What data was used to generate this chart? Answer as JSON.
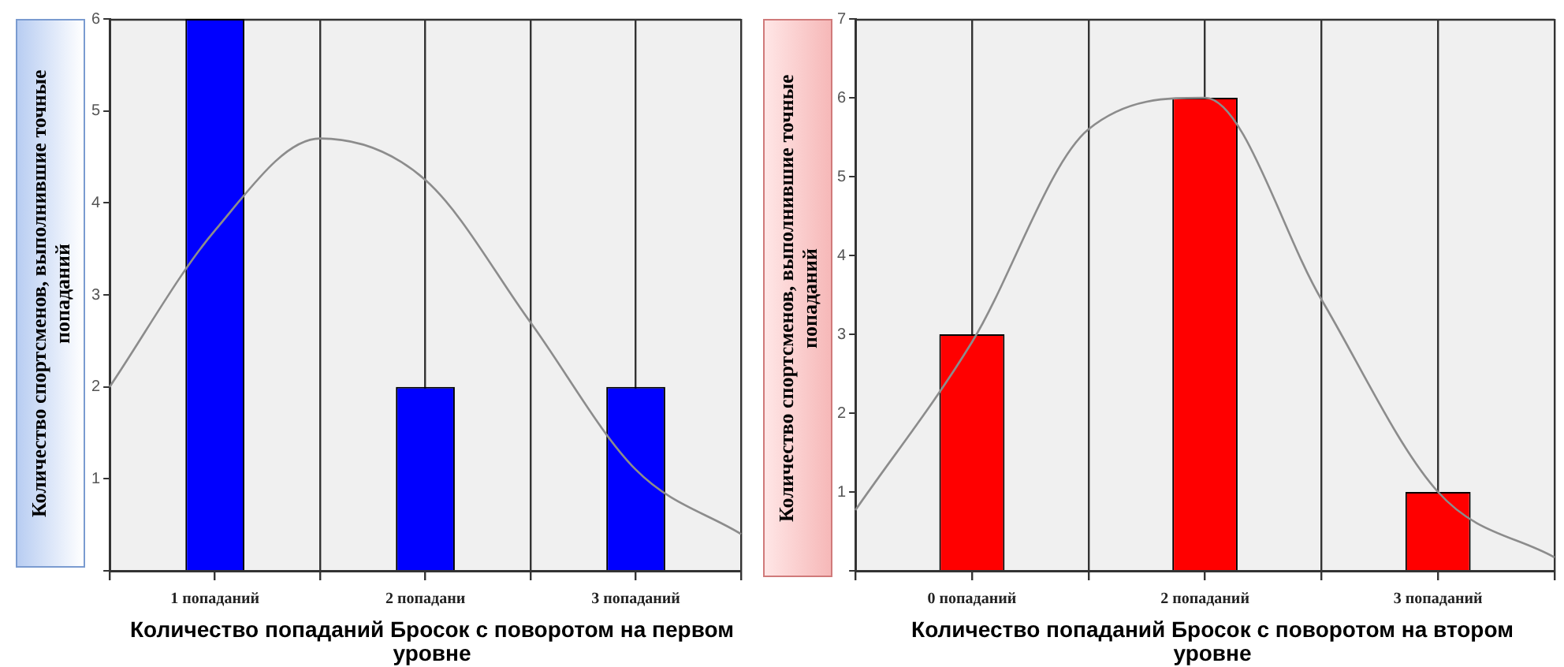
{
  "chart_data": [
    {
      "type": "bar",
      "xlabel": "Количество попаданий Бросок с поворотом на первом уровне",
      "ylabel": "Количество спортсменов, выполнившие точные  попаданий",
      "categories": [
        null,
        "1 попаданий",
        null,
        "2 попадани",
        null,
        "3 попаданий",
        null
      ],
      "series": [
        {
          "color": "#0000ff",
          "values": [
            null,
            6,
            null,
            2,
            null,
            2,
            null
          ]
        },
        {
          "type": "line",
          "color": "#8c8c8c",
          "values": [
            2.0,
            3.7,
            4.7,
            4.25,
            2.7,
            1.1,
            0.4
          ]
        }
      ],
      "ylim": [
        0,
        6
      ],
      "yticks": [
        {
          "value": 0,
          "label": null
        },
        1,
        2,
        3,
        4,
        5,
        6
      ],
      "grid": "x"
    },
    {
      "type": "bar",
      "xlabel": "Количество попаданий Бросок с поворотом на втором уровне",
      "ylabel": "Количество спортсменов, выполнившие точные  попаданий",
      "categories": [
        null,
        "0 попаданий",
        null,
        "2 попаданий",
        null,
        "3 попаданий",
        null
      ],
      "series": [
        {
          "color": "#ff0000",
          "values": [
            null,
            3,
            null,
            6,
            null,
            1,
            null
          ]
        },
        {
          "type": "line",
          "color": "#8c8c8c",
          "values": [
            0.77,
            2.9,
            5.6,
            6.0,
            3.44,
            1.0,
            0.17
          ]
        }
      ],
      "ylim": [
        0,
        7
      ],
      "yticks": [
        {
          "value": 0,
          "label": null
        },
        1,
        2,
        3,
        4,
        5,
        6,
        7
      ],
      "grid": "x"
    }
  ]
}
